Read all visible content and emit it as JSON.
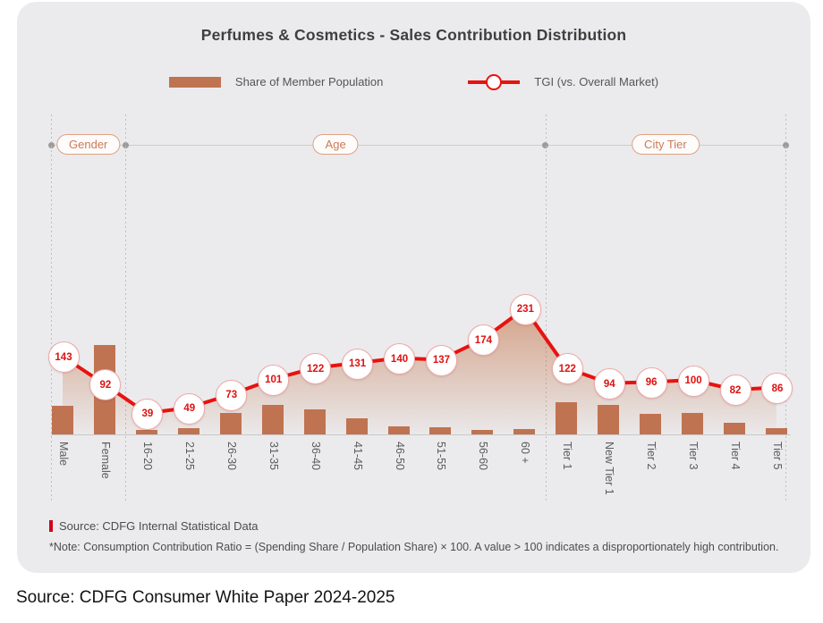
{
  "page": {
    "source_caption": "Source: CDFG Consumer White Paper 2024-2025"
  },
  "card": {
    "title": "Perfumes & Cosmetics - Sales Contribution Distribution",
    "legend": {
      "bar_label": "Share of Member Population",
      "line_label": "TGI (vs. Overall Market)"
    },
    "footer": {
      "source": "Source: CDFG Internal Statistical Data",
      "note": "*Note: Consumption Contribution Ratio = (Spending Share / Population Share) × 100. A value > 100 indicates a disproportionately high contribution."
    }
  },
  "colors": {
    "bar": "#c07351",
    "line": "#e8120e",
    "area_top": "rgba(193,103,56,0.55)",
    "area_bottom": "rgba(193,103,56,0.02)",
    "marker_text": "#e01010",
    "marker_border": "#f2a6a6",
    "group_label": "#cd7a57",
    "group_border": "#e0a183",
    "source_marker": "#d0021b",
    "card_bg": "#ebebed"
  },
  "chart_data": {
    "type": "bar+line",
    "title": "Perfumes & Cosmetics - Sales Contribution Distribution",
    "categories": [
      "Male",
      "Female",
      "16-20",
      "21-25",
      "26-30",
      "31-35",
      "36-40",
      "41-45",
      "46-50",
      "51-55",
      "56-60",
      "60 +",
      "Tier 1",
      "New Tier 1",
      "Tier 2",
      "Tier 3",
      "Tier 4",
      "Tier 5"
    ],
    "groups": [
      {
        "label": "Gender",
        "start": 0,
        "end": 2
      },
      {
        "label": "Age",
        "start": 2,
        "end": 12
      },
      {
        "label": "City Tier",
        "start": 12,
        "end": 18
      }
    ],
    "series": [
      {
        "name": "Share of Member Population",
        "type": "bar",
        "values_estimated_relative": [
          32,
          100,
          5,
          7,
          24,
          33,
          28,
          18,
          9,
          8,
          5,
          6,
          36,
          33,
          23,
          24,
          13,
          7
        ]
      },
      {
        "name": "TGI (vs. Overall Market)",
        "type": "line",
        "values": [
          143,
          92,
          39,
          49,
          73,
          101,
          122,
          131,
          140,
          137,
          174,
          231,
          122,
          94,
          96,
          100,
          82,
          86
        ]
      }
    ],
    "legend_position": "top",
    "y_axis": "hidden",
    "value_labels": "shown in circular markers on line"
  }
}
